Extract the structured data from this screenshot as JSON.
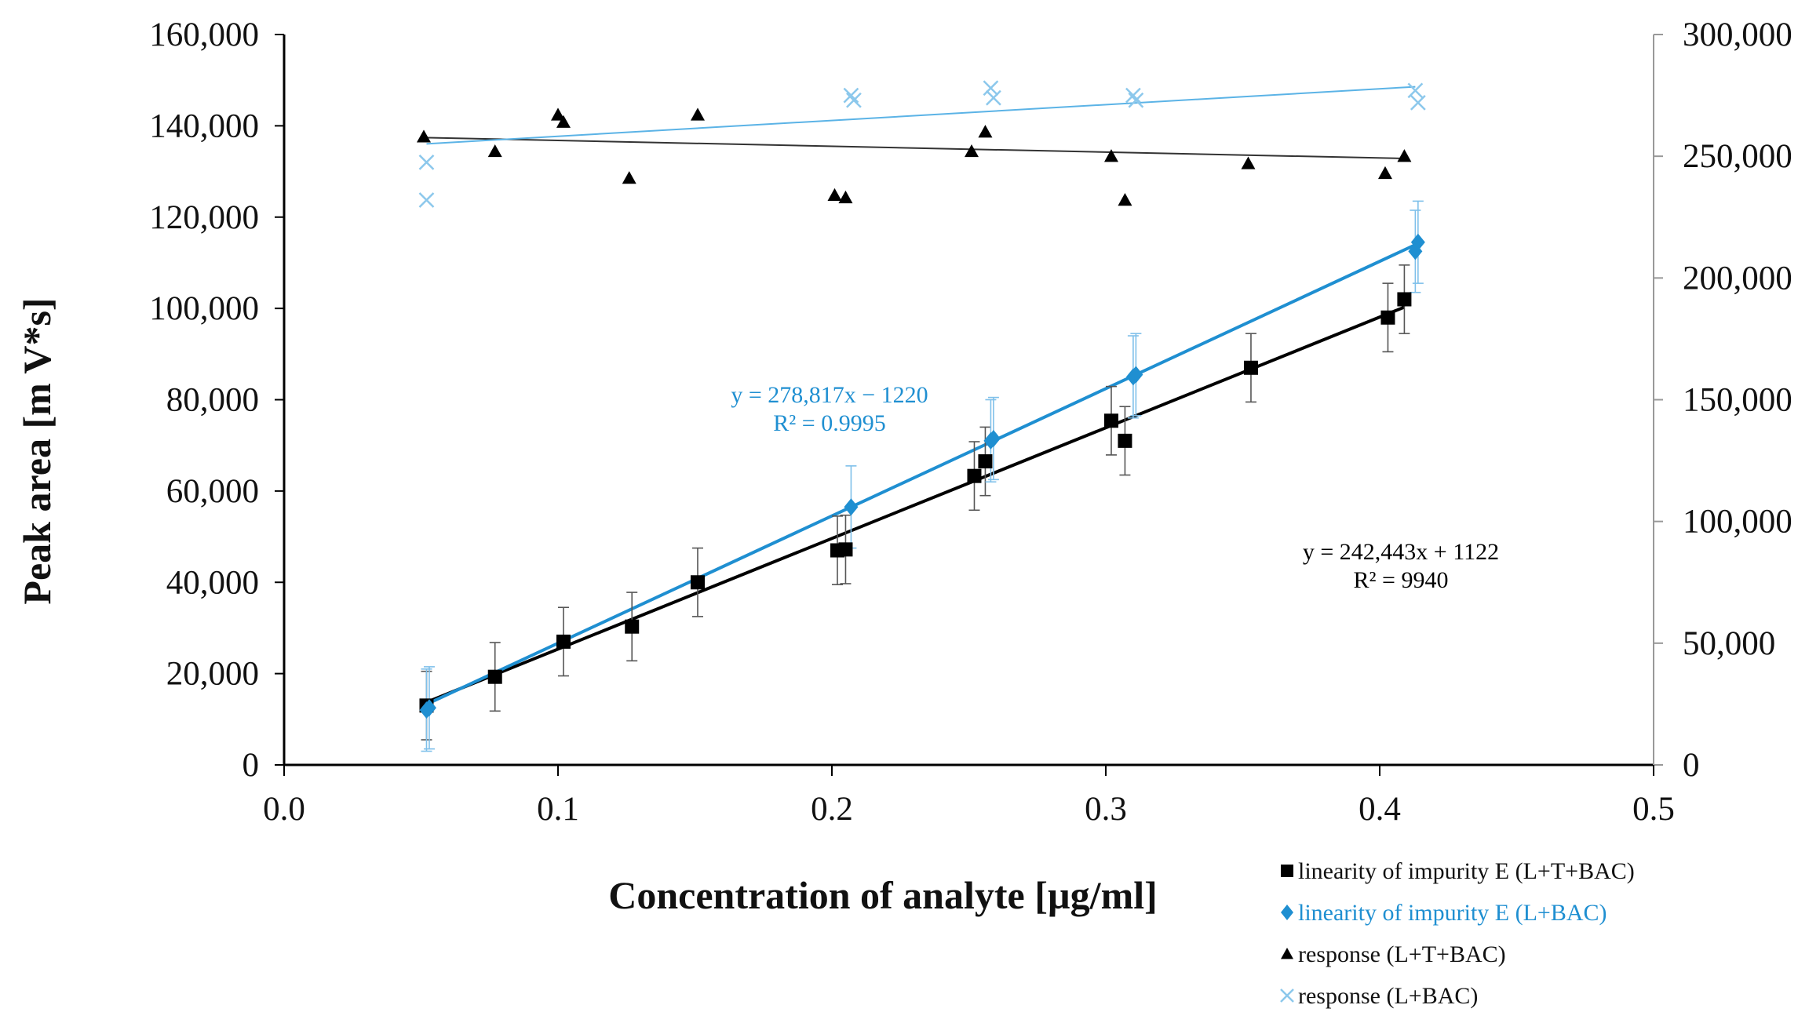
{
  "chart_data": {
    "type": "scatter",
    "xlabel": "Concentration of analyte [µg/ml]",
    "ylabel": "Peak area  [m V*s]",
    "xlim": [
      0,
      0.5
    ],
    "ylim": [
      0,
      160000
    ],
    "y2lim": [
      0,
      300000
    ],
    "x_ticks": [
      "0.0",
      "0.1",
      "0.2",
      "0.3",
      "0.4",
      "0.5"
    ],
    "y_ticks": [
      "0",
      "20,000",
      "40,000",
      "60,000",
      "80,000",
      "100,000",
      "120,000",
      "140,000",
      "160,000"
    ],
    "y2_ticks": [
      "0",
      "50,000",
      "100,000",
      "150,000",
      "200,000",
      "250,000",
      "300,000"
    ],
    "grid": false,
    "legend_position": "bottom-right",
    "colors": {
      "black_series": "#000000",
      "blue_series": "#1f8fd1",
      "light_blue_series": "#8cc8ec",
      "axis": "#000000",
      "secondary_axis": "#999999"
    },
    "series": [
      {
        "name": "linearity of impurity E (L+T+BAC)",
        "marker": "square",
        "color": "#000000",
        "axis": "primary",
        "x": [
          0.052,
          0.077,
          0.102,
          0.127,
          0.151,
          0.202,
          0.205,
          0.252,
          0.256,
          0.302,
          0.307,
          0.353,
          0.403,
          0.409
        ],
        "y": [
          13000,
          19300,
          27000,
          30300,
          40000,
          47000,
          47200,
          63300,
          66500,
          75400,
          71000,
          87000,
          98000,
          102000
        ],
        "error": [
          7500,
          7500,
          7500,
          7500,
          7500,
          7500,
          7500,
          7500,
          7500,
          7500,
          7500,
          7500,
          7500,
          7500
        ],
        "trendline": {
          "slope": 242443,
          "intercept": 1122,
          "x_range": [
            0.052,
            0.409
          ]
        }
      },
      {
        "name": "linearity of impurity E (L+BAC)",
        "marker": "diamond",
        "color": "#1f8fd1",
        "axis": "primary",
        "x": [
          0.052,
          0.053,
          0.207,
          0.258,
          0.259,
          0.31,
          0.311,
          0.413,
          0.414
        ],
        "y": [
          12000,
          12500,
          56500,
          71000,
          71500,
          85000,
          85500,
          112500,
          114500
        ],
        "error": [
          9000,
          9000,
          9000,
          9000,
          9000,
          9000,
          9000,
          9000,
          9000
        ],
        "trendline": {
          "slope": 278817,
          "intercept": -1220,
          "x_range": [
            0.052,
            0.414
          ]
        }
      },
      {
        "name": "response (L+T+BAC)",
        "marker": "triangle",
        "color": "#000000",
        "axis": "secondary",
        "x": [
          0.051,
          0.077,
          0.1,
          0.102,
          0.126,
          0.151,
          0.201,
          0.205,
          0.251,
          0.256,
          0.302,
          0.307,
          0.352,
          0.402,
          0.409
        ],
        "y": [
          258000,
          252000,
          267000,
          264000,
          241000,
          267000,
          234000,
          233000,
          252000,
          260000,
          250000,
          232000,
          247000,
          243000,
          250000
        ],
        "trendline": {
          "slope": -24000,
          "intercept": 258900,
          "x_range": [
            0.051,
            0.409
          ]
        }
      },
      {
        "name": "response (L+BAC)",
        "marker": "cross",
        "color": "#8cc8ec",
        "axis": "secondary",
        "x": [
          0.052,
          0.052,
          0.207,
          0.208,
          0.258,
          0.259,
          0.31,
          0.311,
          0.413,
          0.414
        ],
        "y": [
          247500,
          232000,
          275000,
          273000,
          278000,
          274000,
          275000,
          273000,
          277000,
          272000
        ],
        "trendline": {
          "slope": 65000,
          "intercept": 251700,
          "x_range": [
            0.052,
            0.413
          ]
        }
      }
    ],
    "annotations": [
      {
        "text": "y = 278,817x − 1220",
        "color": "#1f8fd1"
      },
      {
        "text": "R² = 0.9995",
        "color": "#1f8fd1"
      },
      {
        "text": "y = 242,443x  + 1122",
        "color": "#000000"
      },
      {
        "text": "R² = 9940",
        "color": "#000000"
      }
    ]
  }
}
